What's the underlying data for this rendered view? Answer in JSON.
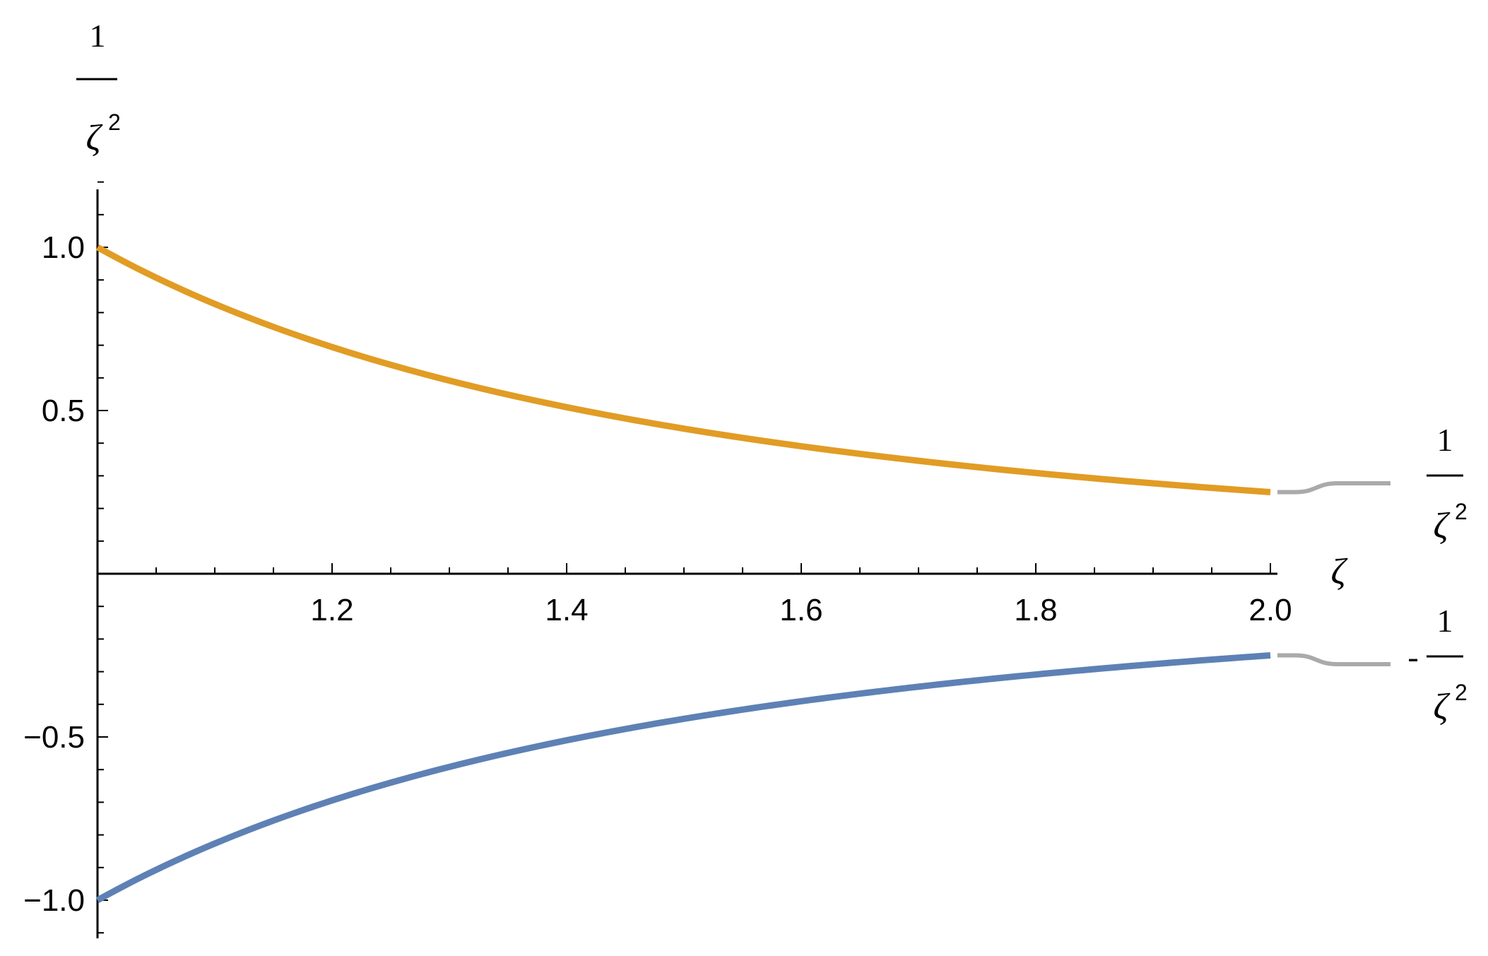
{
  "chart_data": {
    "type": "line",
    "xlabel": "ζ",
    "ylabel": {
      "numerator": "1",
      "denominator": "ζ",
      "exponent": "2"
    },
    "xlim": [
      1.0,
      2.0
    ],
    "ylim": [
      -1.1,
      1.2
    ],
    "x_ticks": [
      1.2,
      1.4,
      1.6,
      1.8,
      2.0
    ],
    "x_tick_labels": [
      "1.2",
      "1.4",
      "1.6",
      "1.8",
      "2.0"
    ],
    "y_ticks": [
      -1.0,
      -0.5,
      0.5,
      1.0
    ],
    "y_tick_labels": [
      "−1.0",
      "−0.5",
      "0.5",
      "1.0"
    ],
    "grid": false,
    "series": [
      {
        "label": {
          "sign": "",
          "numerator": "1",
          "denominator": "ζ",
          "exponent": "2"
        },
        "color": "#E19C24",
        "x": [
          1.0,
          1.1,
          1.2,
          1.3,
          1.4,
          1.5,
          1.6,
          1.7,
          1.8,
          1.9,
          2.0
        ],
        "y": [
          1.0,
          0.826,
          0.694,
          0.592,
          0.51,
          0.444,
          0.391,
          0.346,
          0.309,
          0.277,
          0.25
        ]
      },
      {
        "label": {
          "sign": "-",
          "numerator": "1",
          "denominator": "ζ",
          "exponent": "2"
        },
        "color": "#5E81B5",
        "x": [
          1.0,
          1.1,
          1.2,
          1.3,
          1.4,
          1.5,
          1.6,
          1.7,
          1.8,
          1.9,
          2.0
        ],
        "y": [
          -1.0,
          -0.826,
          -0.694,
          -0.592,
          -0.51,
          -0.444,
          -0.391,
          -0.346,
          -0.309,
          -0.277,
          -0.25
        ]
      }
    ],
    "label_connector_color": "#AAAAAA"
  }
}
